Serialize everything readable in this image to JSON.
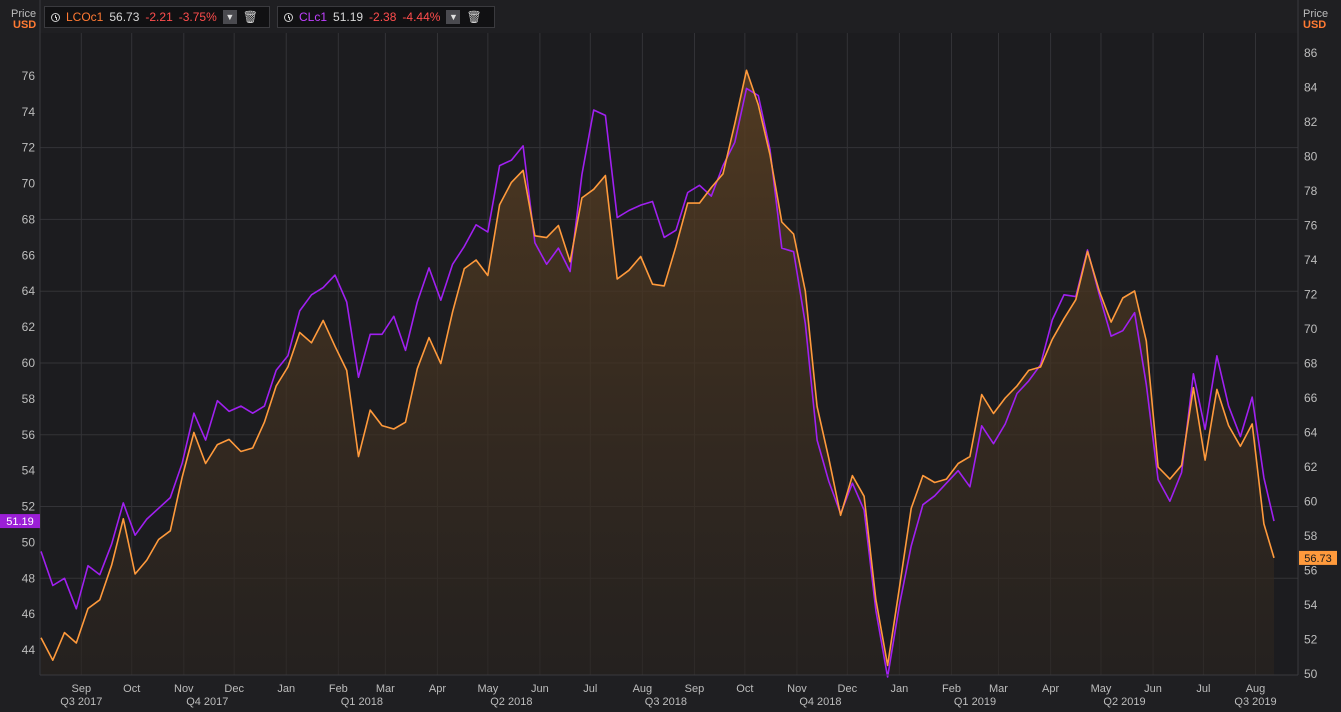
{
  "legend": [
    {
      "ric": "LCOc1",
      "last": "56.73",
      "change": "-2.21",
      "pct": "-3.75%",
      "color": "#ff7a33"
    },
    {
      "ric": "CLc1",
      "last": "51.19",
      "change": "-2.38",
      "pct": "-4.44%",
      "color": "#b23bdf"
    }
  ],
  "axis_title_left": {
    "line1": "Price",
    "line2": "USD"
  },
  "axis_title_right": {
    "line1": "Price",
    "line2": "USD"
  },
  "badges": {
    "left": "51.19",
    "right": "56.73"
  },
  "colors": {
    "background": "#1f1f22",
    "grid": "#333337",
    "wti": "#a020f0",
    "brent": "#ff9a3c",
    "fill": "#4a3522",
    "text": "#bdbdbd"
  },
  "chart_data": {
    "type": "line",
    "x_range": [
      "2017-08-08",
      "2019-08-12"
    ],
    "left_axis": {
      "min": 42.5,
      "max": 78,
      "ticks": [
        44,
        46,
        48,
        50,
        52,
        54,
        56,
        58,
        60,
        62,
        64,
        66,
        68,
        70,
        72,
        74,
        76
      ],
      "series": "CLc1"
    },
    "right_axis": {
      "min": 49.5,
      "max": 87,
      "ticks": [
        50,
        52,
        54,
        56,
        58,
        60,
        62,
        64,
        66,
        68,
        70,
        72,
        74,
        76,
        78,
        80,
        82,
        84,
        86
      ],
      "series": "LCOc1"
    },
    "month_labels": [
      {
        "date": "2017-09-01",
        "label": "Sep"
      },
      {
        "date": "2017-10-01",
        "label": "Oct"
      },
      {
        "date": "2017-11-01",
        "label": "Nov"
      },
      {
        "date": "2017-12-01",
        "label": "Dec"
      },
      {
        "date": "2018-01-01",
        "label": "Jan"
      },
      {
        "date": "2018-02-01",
        "label": "Feb"
      },
      {
        "date": "2018-03-01",
        "label": "Mar"
      },
      {
        "date": "2018-04-01",
        "label": "Apr"
      },
      {
        "date": "2018-05-01",
        "label": "May"
      },
      {
        "date": "2018-06-01",
        "label": "Jun"
      },
      {
        "date": "2018-07-01",
        "label": "Jul"
      },
      {
        "date": "2018-08-01",
        "label": "Aug"
      },
      {
        "date": "2018-09-01",
        "label": "Sep"
      },
      {
        "date": "2018-10-01",
        "label": "Oct"
      },
      {
        "date": "2018-11-01",
        "label": "Nov"
      },
      {
        "date": "2018-12-01",
        "label": "Dec"
      },
      {
        "date": "2019-01-01",
        "label": "Jan"
      },
      {
        "date": "2019-02-01",
        "label": "Feb"
      },
      {
        "date": "2019-03-01",
        "label": "Mar"
      },
      {
        "date": "2019-04-01",
        "label": "Apr"
      },
      {
        "date": "2019-05-01",
        "label": "May"
      },
      {
        "date": "2019-06-01",
        "label": "Jun"
      },
      {
        "date": "2019-07-01",
        "label": "Jul"
      },
      {
        "date": "2019-08-01",
        "label": "Aug"
      }
    ],
    "quarter_labels": [
      {
        "date": "2017-09-01",
        "label": "Q3 2017"
      },
      {
        "date": "2017-11-15",
        "label": "Q4 2017"
      },
      {
        "date": "2018-02-15",
        "label": "Q1 2018"
      },
      {
        "date": "2018-05-15",
        "label": "Q2 2018"
      },
      {
        "date": "2018-08-15",
        "label": "Q3 2018"
      },
      {
        "date": "2018-11-15",
        "label": "Q4 2018"
      },
      {
        "date": "2019-02-15",
        "label": "Q1 2019"
      },
      {
        "date": "2019-05-15",
        "label": "Q2 2019"
      },
      {
        "date": "2019-08-01",
        "label": "Q3 2019"
      }
    ],
    "series": [
      {
        "name": "CLc1",
        "axis": "left",
        "points": [
          [
            "2017-08-08",
            49.5
          ],
          [
            "2017-08-15",
            47.6
          ],
          [
            "2017-08-22",
            48.0
          ],
          [
            "2017-08-29",
            46.3
          ],
          [
            "2017-09-05",
            48.7
          ],
          [
            "2017-09-12",
            48.2
          ],
          [
            "2017-09-19",
            49.9
          ],
          [
            "2017-09-26",
            52.2
          ],
          [
            "2017-10-03",
            50.4
          ],
          [
            "2017-10-10",
            51.3
          ],
          [
            "2017-10-17",
            51.9
          ],
          [
            "2017-10-24",
            52.5
          ],
          [
            "2017-10-31",
            54.4
          ],
          [
            "2017-11-07",
            57.2
          ],
          [
            "2017-11-14",
            55.7
          ],
          [
            "2017-11-21",
            57.9
          ],
          [
            "2017-11-28",
            57.3
          ],
          [
            "2017-12-05",
            57.6
          ],
          [
            "2017-12-12",
            57.2
          ],
          [
            "2017-12-19",
            57.6
          ],
          [
            "2017-12-26",
            59.6
          ],
          [
            "2018-01-02",
            60.4
          ],
          [
            "2018-01-09",
            62.9
          ],
          [
            "2018-01-16",
            63.8
          ],
          [
            "2018-01-23",
            64.2
          ],
          [
            "2018-01-30",
            64.9
          ],
          [
            "2018-02-06",
            63.4
          ],
          [
            "2018-02-13",
            59.2
          ],
          [
            "2018-02-20",
            61.6
          ],
          [
            "2018-02-27",
            61.6
          ],
          [
            "2018-03-06",
            62.6
          ],
          [
            "2018-03-13",
            60.7
          ],
          [
            "2018-03-20",
            63.4
          ],
          [
            "2018-03-27",
            65.3
          ],
          [
            "2018-04-03",
            63.5
          ],
          [
            "2018-04-10",
            65.5
          ],
          [
            "2018-04-17",
            66.5
          ],
          [
            "2018-04-24",
            67.7
          ],
          [
            "2018-05-01",
            67.3
          ],
          [
            "2018-05-08",
            71.0
          ],
          [
            "2018-05-15",
            71.3
          ],
          [
            "2018-05-22",
            72.1
          ],
          [
            "2018-05-29",
            66.7
          ],
          [
            "2018-06-05",
            65.5
          ],
          [
            "2018-06-12",
            66.4
          ],
          [
            "2018-06-19",
            65.1
          ],
          [
            "2018-06-26",
            70.5
          ],
          [
            "2018-07-03",
            74.1
          ],
          [
            "2018-07-10",
            73.8
          ],
          [
            "2018-07-17",
            68.1
          ],
          [
            "2018-07-24",
            68.5
          ],
          [
            "2018-07-31",
            68.8
          ],
          [
            "2018-08-07",
            69.0
          ],
          [
            "2018-08-14",
            67.0
          ],
          [
            "2018-08-21",
            67.4
          ],
          [
            "2018-08-28",
            69.5
          ],
          [
            "2018-09-04",
            69.9
          ],
          [
            "2018-09-11",
            69.3
          ],
          [
            "2018-09-18",
            71.0
          ],
          [
            "2018-09-25",
            72.3
          ],
          [
            "2018-10-02",
            75.3
          ],
          [
            "2018-10-09",
            74.9
          ],
          [
            "2018-10-16",
            71.9
          ],
          [
            "2018-10-23",
            66.4
          ],
          [
            "2018-10-30",
            66.2
          ],
          [
            "2018-11-06",
            62.2
          ],
          [
            "2018-11-13",
            55.7
          ],
          [
            "2018-11-20",
            53.4
          ],
          [
            "2018-11-27",
            51.6
          ],
          [
            "2018-12-04",
            53.3
          ],
          [
            "2018-12-11",
            51.8
          ],
          [
            "2018-12-18",
            46.2
          ],
          [
            "2018-12-25",
            42.5
          ],
          [
            "2019-01-01",
            46.5
          ],
          [
            "2019-01-08",
            49.8
          ],
          [
            "2019-01-15",
            52.1
          ],
          [
            "2019-01-22",
            52.6
          ],
          [
            "2019-01-29",
            53.3
          ],
          [
            "2019-02-05",
            54.0
          ],
          [
            "2019-02-12",
            53.1
          ],
          [
            "2019-02-19",
            56.5
          ],
          [
            "2019-02-26",
            55.5
          ],
          [
            "2019-03-05",
            56.6
          ],
          [
            "2019-03-12",
            58.3
          ],
          [
            "2019-03-19",
            59.0
          ],
          [
            "2019-03-26",
            59.9
          ],
          [
            "2019-04-02",
            62.4
          ],
          [
            "2019-04-09",
            63.8
          ],
          [
            "2019-04-16",
            63.7
          ],
          [
            "2019-04-23",
            66.3
          ],
          [
            "2019-04-30",
            63.8
          ],
          [
            "2019-05-07",
            61.5
          ],
          [
            "2019-05-14",
            61.8
          ],
          [
            "2019-05-21",
            62.8
          ],
          [
            "2019-05-28",
            58.8
          ],
          [
            "2019-06-04",
            53.5
          ],
          [
            "2019-06-11",
            52.3
          ],
          [
            "2019-06-18",
            53.9
          ],
          [
            "2019-06-25",
            59.4
          ],
          [
            "2019-07-02",
            56.3
          ],
          [
            "2019-07-09",
            60.4
          ],
          [
            "2019-07-16",
            57.6
          ],
          [
            "2019-07-23",
            55.9
          ],
          [
            "2019-07-30",
            58.1
          ],
          [
            "2019-08-06",
            53.6
          ],
          [
            "2019-08-12",
            51.19
          ]
        ]
      },
      {
        "name": "LCOc1",
        "axis": "right",
        "points": [
          [
            "2017-08-08",
            52.1
          ],
          [
            "2017-08-15",
            50.8
          ],
          [
            "2017-08-22",
            52.4
          ],
          [
            "2017-08-29",
            51.8
          ],
          [
            "2017-09-05",
            53.8
          ],
          [
            "2017-09-12",
            54.3
          ],
          [
            "2017-09-19",
            56.3
          ],
          [
            "2017-09-26",
            59.0
          ],
          [
            "2017-10-03",
            55.8
          ],
          [
            "2017-10-10",
            56.6
          ],
          [
            "2017-10-17",
            57.8
          ],
          [
            "2017-10-24",
            58.3
          ],
          [
            "2017-10-31",
            61.4
          ],
          [
            "2017-11-07",
            64.0
          ],
          [
            "2017-11-14",
            62.2
          ],
          [
            "2017-11-21",
            63.3
          ],
          [
            "2017-11-28",
            63.6
          ],
          [
            "2017-12-05",
            62.9
          ],
          [
            "2017-12-12",
            63.1
          ],
          [
            "2017-12-19",
            64.6
          ],
          [
            "2017-12-26",
            66.7
          ],
          [
            "2018-01-02",
            67.8
          ],
          [
            "2018-01-09",
            69.8
          ],
          [
            "2018-01-16",
            69.2
          ],
          [
            "2018-01-23",
            70.5
          ],
          [
            "2018-01-30",
            69.0
          ],
          [
            "2018-02-06",
            67.6
          ],
          [
            "2018-02-13",
            62.6
          ],
          [
            "2018-02-20",
            65.3
          ],
          [
            "2018-02-27",
            64.4
          ],
          [
            "2018-03-06",
            64.2
          ],
          [
            "2018-03-13",
            64.6
          ],
          [
            "2018-03-20",
            67.7
          ],
          [
            "2018-03-27",
            69.5
          ],
          [
            "2018-04-03",
            68.0
          ],
          [
            "2018-04-10",
            71.0
          ],
          [
            "2018-04-17",
            73.5
          ],
          [
            "2018-04-24",
            74.0
          ],
          [
            "2018-05-01",
            73.1
          ],
          [
            "2018-05-08",
            77.2
          ],
          [
            "2018-05-15",
            78.5
          ],
          [
            "2018-05-22",
            79.2
          ],
          [
            "2018-05-29",
            75.4
          ],
          [
            "2018-06-05",
            75.3
          ],
          [
            "2018-06-12",
            76.0
          ],
          [
            "2018-06-19",
            73.9
          ],
          [
            "2018-06-26",
            77.6
          ],
          [
            "2018-07-03",
            78.1
          ],
          [
            "2018-07-10",
            78.9
          ],
          [
            "2018-07-17",
            72.9
          ],
          [
            "2018-07-24",
            73.4
          ],
          [
            "2018-07-31",
            74.2
          ],
          [
            "2018-08-07",
            72.6
          ],
          [
            "2018-08-14",
            72.5
          ],
          [
            "2018-08-21",
            74.8
          ],
          [
            "2018-08-28",
            77.3
          ],
          [
            "2018-09-04",
            77.3
          ],
          [
            "2018-09-11",
            78.2
          ],
          [
            "2018-09-18",
            79.0
          ],
          [
            "2018-09-25",
            81.9
          ],
          [
            "2018-10-02",
            85.0
          ],
          [
            "2018-10-09",
            83.0
          ],
          [
            "2018-10-16",
            80.1
          ],
          [
            "2018-10-23",
            76.2
          ],
          [
            "2018-10-30",
            75.5
          ],
          [
            "2018-11-06",
            72.2
          ],
          [
            "2018-11-13",
            65.5
          ],
          [
            "2018-11-20",
            62.5
          ],
          [
            "2018-11-27",
            59.2
          ],
          [
            "2018-12-04",
            61.5
          ],
          [
            "2018-12-11",
            60.3
          ],
          [
            "2018-12-18",
            54.3
          ],
          [
            "2018-12-25",
            50.5
          ],
          [
            "2019-01-01",
            55.0
          ],
          [
            "2019-01-08",
            59.6
          ],
          [
            "2019-01-15",
            61.5
          ],
          [
            "2019-01-22",
            61.1
          ],
          [
            "2019-01-29",
            61.3
          ],
          [
            "2019-02-05",
            62.2
          ],
          [
            "2019-02-12",
            62.6
          ],
          [
            "2019-02-19",
            66.2
          ],
          [
            "2019-02-26",
            65.1
          ],
          [
            "2019-03-05",
            66.0
          ],
          [
            "2019-03-12",
            66.7
          ],
          [
            "2019-03-19",
            67.6
          ],
          [
            "2019-03-26",
            67.8
          ],
          [
            "2019-04-02",
            69.4
          ],
          [
            "2019-04-09",
            70.6
          ],
          [
            "2019-04-16",
            71.7
          ],
          [
            "2019-04-23",
            74.5
          ],
          [
            "2019-04-30",
            72.2
          ],
          [
            "2019-05-07",
            70.4
          ],
          [
            "2019-05-14",
            71.8
          ],
          [
            "2019-05-21",
            72.2
          ],
          [
            "2019-05-28",
            69.3
          ],
          [
            "2019-06-04",
            62.0
          ],
          [
            "2019-06-11",
            61.3
          ],
          [
            "2019-06-18",
            62.1
          ],
          [
            "2019-06-25",
            66.6
          ],
          [
            "2019-07-02",
            62.4
          ],
          [
            "2019-07-09",
            66.5
          ],
          [
            "2019-07-16",
            64.4
          ],
          [
            "2019-07-23",
            63.2
          ],
          [
            "2019-07-30",
            64.5
          ],
          [
            "2019-08-06",
            58.7
          ],
          [
            "2019-08-12",
            56.73
          ]
        ]
      }
    ]
  }
}
